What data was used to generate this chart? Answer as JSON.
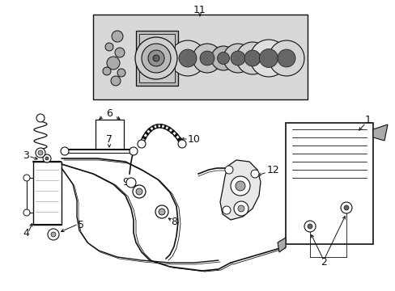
{
  "bg_color": "#ffffff",
  "line_color": "#111111",
  "gray_fill": "#d8d8d8",
  "mid_gray": "#aaaaaa",
  "dark_gray": "#666666",
  "figsize": [
    4.89,
    3.6
  ],
  "dpi": 100
}
